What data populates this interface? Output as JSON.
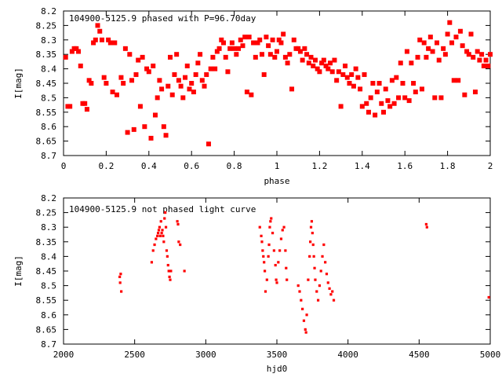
{
  "chart_data": [
    {
      "type": "scatter",
      "title": "104900-5125.9 phased with P=96.70day",
      "xlabel": "phase",
      "ylabel": "I[mag]",
      "xlim": [
        0,
        2
      ],
      "ylim": [
        8.2,
        8.7
      ],
      "y_inverted": true,
      "grid": false,
      "marker_color": "#ff0000",
      "xticks": [
        "0",
        "0.2",
        "0.4",
        "0.6",
        "0.8",
        "1",
        "1.2",
        "1.4",
        "1.6",
        "1.8",
        "2"
      ],
      "yticks": [
        "8.2",
        "8.25",
        "8.3",
        "8.35",
        "8.4",
        "8.45",
        "8.5",
        "8.55",
        "8.6",
        "8.65",
        "8.7"
      ],
      "points": [
        [
          0.01,
          8.36
        ],
        [
          0.02,
          8.53
        ],
        [
          0.03,
          8.53
        ],
        [
          0.04,
          8.34
        ],
        [
          0.05,
          8.33
        ],
        [
          0.06,
          8.33
        ],
        [
          0.07,
          8.34
        ],
        [
          0.08,
          8.39
        ],
        [
          0.09,
          8.52
        ],
        [
          0.1,
          8.52
        ],
        [
          0.11,
          8.54
        ],
        [
          0.12,
          8.44
        ],
        [
          0.13,
          8.45
        ],
        [
          0.14,
          8.31
        ],
        [
          0.15,
          8.3
        ],
        [
          0.16,
          8.25
        ],
        [
          0.17,
          8.27
        ],
        [
          0.18,
          8.3
        ],
        [
          0.19,
          8.43
        ],
        [
          0.2,
          8.45
        ],
        [
          0.21,
          8.3
        ],
        [
          0.22,
          8.31
        ],
        [
          0.23,
          8.48
        ],
        [
          0.24,
          8.31
        ],
        [
          0.25,
          8.49
        ],
        [
          0.27,
          8.43
        ],
        [
          0.28,
          8.45
        ],
        [
          0.29,
          8.33
        ],
        [
          0.3,
          8.62
        ],
        [
          0.31,
          8.35
        ],
        [
          0.32,
          8.44
        ],
        [
          0.33,
          8.61
        ],
        [
          0.34,
          8.42
        ],
        [
          0.35,
          8.37
        ],
        [
          0.36,
          8.53
        ],
        [
          0.37,
          8.36
        ],
        [
          0.38,
          8.6
        ],
        [
          0.39,
          8.4
        ],
        [
          0.4,
          8.41
        ],
        [
          0.41,
          8.64
        ],
        [
          0.42,
          8.39
        ],
        [
          0.43,
          8.56
        ],
        [
          0.44,
          8.5
        ],
        [
          0.45,
          8.44
        ],
        [
          0.46,
          8.47
        ],
        [
          0.47,
          8.6
        ],
        [
          0.48,
          8.63
        ],
        [
          0.49,
          8.46
        ],
        [
          0.5,
          8.36
        ],
        [
          0.51,
          8.49
        ],
        [
          0.52,
          8.42
        ],
        [
          0.53,
          8.35
        ],
        [
          0.54,
          8.44
        ],
        [
          0.55,
          8.46
        ],
        [
          0.56,
          8.5
        ],
        [
          0.57,
          8.43
        ],
        [
          0.58,
          8.39
        ],
        [
          0.59,
          8.47
        ],
        [
          0.6,
          8.45
        ],
        [
          0.61,
          8.48
        ],
        [
          0.62,
          8.42
        ],
        [
          0.63,
          8.38
        ],
        [
          0.64,
          8.35
        ],
        [
          0.65,
          8.44
        ],
        [
          0.66,
          8.46
        ],
        [
          0.67,
          8.42
        ],
        [
          0.68,
          8.66
        ],
        [
          0.69,
          8.4
        ],
        [
          0.7,
          8.36
        ],
        [
          0.71,
          8.4
        ],
        [
          0.72,
          8.34
        ],
        [
          0.73,
          8.33
        ],
        [
          0.74,
          8.3
        ],
        [
          0.75,
          8.31
        ],
        [
          0.76,
          8.36
        ],
        [
          0.77,
          8.41
        ],
        [
          0.78,
          8.33
        ],
        [
          0.79,
          8.31
        ],
        [
          0.8,
          8.33
        ],
        [
          0.81,
          8.35
        ],
        [
          0.82,
          8.33
        ],
        [
          0.83,
          8.3
        ],
        [
          0.84,
          8.32
        ],
        [
          0.85,
          8.29
        ],
        [
          0.86,
          8.48
        ],
        [
          0.87,
          8.29
        ],
        [
          0.88,
          8.49
        ],
        [
          0.89,
          8.31
        ],
        [
          0.9,
          8.36
        ],
        [
          0.91,
          8.31
        ],
        [
          0.92,
          8.3
        ],
        [
          0.93,
          8.35
        ],
        [
          0.94,
          8.42
        ],
        [
          0.95,
          8.29
        ],
        [
          0.96,
          8.32
        ],
        [
          0.97,
          8.35
        ],
        [
          0.98,
          8.3
        ],
        [
          0.99,
          8.36
        ],
        [
          1.0,
          8.34
        ],
        [
          1.01,
          8.3
        ],
        [
          1.02,
          8.31
        ],
        [
          1.03,
          8.28
        ],
        [
          1.04,
          8.36
        ],
        [
          1.05,
          8.38
        ],
        [
          1.06,
          8.35
        ],
        [
          1.07,
          8.47
        ],
        [
          1.08,
          8.3
        ],
        [
          1.09,
          8.33
        ],
        [
          1.1,
          8.33
        ],
        [
          1.11,
          8.34
        ],
        [
          1.12,
          8.37
        ],
        [
          1.13,
          8.33
        ],
        [
          1.14,
          8.35
        ],
        [
          1.15,
          8.38
        ],
        [
          1.16,
          8.36
        ],
        [
          1.17,
          8.39
        ],
        [
          1.18,
          8.37
        ],
        [
          1.19,
          8.4
        ],
        [
          1.2,
          8.41
        ],
        [
          1.21,
          8.38
        ],
        [
          1.22,
          8.37
        ],
        [
          1.23,
          8.39
        ],
        [
          1.24,
          8.4
        ],
        [
          1.25,
          8.38
        ],
        [
          1.26,
          8.41
        ],
        [
          1.27,
          8.37
        ],
        [
          1.28,
          8.44
        ],
        [
          1.29,
          8.41
        ],
        [
          1.3,
          8.53
        ],
        [
          1.31,
          8.42
        ],
        [
          1.32,
          8.39
        ],
        [
          1.33,
          8.43
        ],
        [
          1.34,
          8.45
        ],
        [
          1.35,
          8.42
        ],
        [
          1.36,
          8.46
        ],
        [
          1.37,
          8.4
        ],
        [
          1.38,
          8.43
        ],
        [
          1.39,
          8.47
        ],
        [
          1.4,
          8.53
        ],
        [
          1.41,
          8.42
        ],
        [
          1.42,
          8.52
        ],
        [
          1.43,
          8.55
        ],
        [
          1.44,
          8.5
        ],
        [
          1.45,
          8.45
        ],
        [
          1.46,
          8.56
        ],
        [
          1.47,
          8.48
        ],
        [
          1.48,
          8.45
        ],
        [
          1.49,
          8.52
        ],
        [
          1.5,
          8.55
        ],
        [
          1.51,
          8.47
        ],
        [
          1.52,
          8.51
        ],
        [
          1.53,
          8.53
        ],
        [
          1.54,
          8.44
        ],
        [
          1.55,
          8.52
        ],
        [
          1.56,
          8.43
        ],
        [
          1.57,
          8.5
        ],
        [
          1.58,
          8.38
        ],
        [
          1.59,
          8.45
        ],
        [
          1.6,
          8.5
        ],
        [
          1.61,
          8.34
        ],
        [
          1.62,
          8.51
        ],
        [
          1.63,
          8.38
        ],
        [
          1.64,
          8.45
        ],
        [
          1.65,
          8.48
        ],
        [
          1.66,
          8.36
        ],
        [
          1.67,
          8.3
        ],
        [
          1.68,
          8.47
        ],
        [
          1.69,
          8.31
        ],
        [
          1.7,
          8.36
        ],
        [
          1.71,
          8.33
        ],
        [
          1.72,
          8.29
        ],
        [
          1.73,
          8.34
        ],
        [
          1.74,
          8.5
        ],
        [
          1.75,
          8.31
        ],
        [
          1.76,
          8.37
        ],
        [
          1.77,
          8.5
        ],
        [
          1.78,
          8.33
        ],
        [
          1.79,
          8.35
        ],
        [
          1.8,
          8.28
        ],
        [
          1.81,
          8.24
        ],
        [
          1.82,
          8.31
        ],
        [
          1.83,
          8.44
        ],
        [
          1.84,
          8.29
        ],
        [
          1.85,
          8.44
        ],
        [
          1.86,
          8.27
        ],
        [
          1.87,
          8.32
        ],
        [
          1.88,
          8.49
        ],
        [
          1.89,
          8.34
        ],
        [
          1.9,
          8.35
        ],
        [
          1.91,
          8.28
        ],
        [
          1.92,
          8.36
        ],
        [
          1.93,
          8.48
        ],
        [
          1.94,
          8.34
        ],
        [
          1.95,
          8.37
        ],
        [
          1.96,
          8.35
        ],
        [
          1.97,
          8.39
        ],
        [
          1.98,
          8.37
        ],
        [
          1.99,
          8.39
        ],
        [
          2.0,
          8.35
        ]
      ]
    },
    {
      "type": "scatter",
      "title": "104900-5125.9 not phased light curve",
      "xlabel": "hjd0",
      "ylabel": "I[mag]",
      "xlim": [
        2000,
        5000
      ],
      "ylim": [
        8.2,
        8.7
      ],
      "y_inverted": true,
      "grid": false,
      "marker_color": "#ff0000",
      "xticks": [
        "2000",
        "2500",
        "3000",
        "3500",
        "4000",
        "4500",
        "5000"
      ],
      "yticks": [
        "8.2",
        "8.25",
        "8.3",
        "8.35",
        "8.4",
        "8.45",
        "8.5",
        "8.55",
        "8.6",
        "8.65",
        "8.7"
      ],
      "points": [
        [
          2395,
          8.47
        ],
        [
          2398,
          8.49
        ],
        [
          2402,
          8.46
        ],
        [
          2406,
          8.52
        ],
        [
          2620,
          8.42
        ],
        [
          2630,
          8.38
        ],
        [
          2640,
          8.36
        ],
        [
          2650,
          8.34
        ],
        [
          2660,
          8.33
        ],
        [
          2665,
          8.32
        ],
        [
          2670,
          8.31
        ],
        [
          2675,
          8.3
        ],
        [
          2680,
          8.33
        ],
        [
          2685,
          8.28
        ],
        [
          2690,
          8.32
        ],
        [
          2695,
          8.31
        ],
        [
          2700,
          8.33
        ],
        [
          2705,
          8.35
        ],
        [
          2710,
          8.27
        ],
        [
          2715,
          8.25
        ],
        [
          2720,
          8.3
        ],
        [
          2725,
          8.38
        ],
        [
          2730,
          8.4
        ],
        [
          2735,
          8.43
        ],
        [
          2740,
          8.45
        ],
        [
          2745,
          8.47
        ],
        [
          2750,
          8.48
        ],
        [
          2755,
          8.45
        ],
        [
          2800,
          8.28
        ],
        [
          2805,
          8.29
        ],
        [
          2810,
          8.35
        ],
        [
          2820,
          8.36
        ],
        [
          2850,
          8.45
        ],
        [
          3380,
          8.3
        ],
        [
          3390,
          8.33
        ],
        [
          3395,
          8.35
        ],
        [
          3400,
          8.38
        ],
        [
          3405,
          8.4
        ],
        [
          3410,
          8.42
        ],
        [
          3415,
          8.45
        ],
        [
          3420,
          8.52
        ],
        [
          3430,
          8.48
        ],
        [
          3440,
          8.4
        ],
        [
          3445,
          8.36
        ],
        [
          3450,
          8.3
        ],
        [
          3455,
          8.28
        ],
        [
          3460,
          8.27
        ],
        [
          3470,
          8.32
        ],
        [
          3480,
          8.38
        ],
        [
          3490,
          8.43
        ],
        [
          3495,
          8.48
        ],
        [
          3500,
          8.49
        ],
        [
          3510,
          8.42
        ],
        [
          3520,
          8.38
        ],
        [
          3530,
          8.34
        ],
        [
          3540,
          8.31
        ],
        [
          3550,
          8.3
        ],
        [
          3560,
          8.38
        ],
        [
          3565,
          8.44
        ],
        [
          3570,
          8.48
        ],
        [
          3650,
          8.5
        ],
        [
          3660,
          8.52
        ],
        [
          3670,
          8.55
        ],
        [
          3680,
          8.58
        ],
        [
          3690,
          8.62
        ],
        [
          3700,
          8.65
        ],
        [
          3705,
          8.66
        ],
        [
          3710,
          8.6
        ],
        [
          3720,
          8.48
        ],
        [
          3730,
          8.4
        ],
        [
          3735,
          8.35
        ],
        [
          3740,
          8.3
        ],
        [
          3745,
          8.28
        ],
        [
          3750,
          8.32
        ],
        [
          3755,
          8.36
        ],
        [
          3760,
          8.4
        ],
        [
          3765,
          8.44
        ],
        [
          3770,
          8.48
        ],
        [
          3780,
          8.52
        ],
        [
          3790,
          8.55
        ],
        [
          3800,
          8.5
        ],
        [
          3810,
          8.45
        ],
        [
          3820,
          8.4
        ],
        [
          3830,
          8.36
        ],
        [
          3840,
          8.42
        ],
        [
          3850,
          8.46
        ],
        [
          3860,
          8.49
        ],
        [
          3870,
          8.51
        ],
        [
          3880,
          8.53
        ],
        [
          3890,
          8.52
        ],
        [
          3900,
          8.55
        ],
        [
          4550,
          8.29
        ],
        [
          4555,
          8.3
        ],
        [
          4990,
          8.54
        ]
      ]
    }
  ]
}
